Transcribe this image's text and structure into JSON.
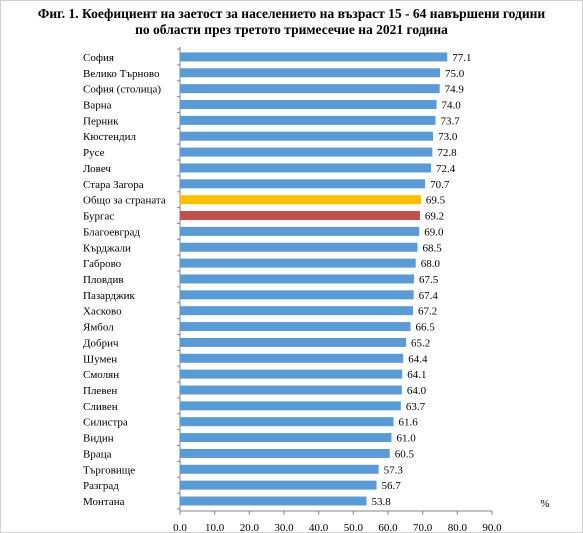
{
  "chart_data": {
    "type": "bar",
    "orientation": "horizontal",
    "title": "Фиг. 1. Коефициент на заетост за населението на възраст 15 - 64 навършени години по области през третото тримесечие на 2021 година",
    "title_lines": [
      "Фиг. 1. Коефициент на заетост за населението на възраст 15 - 64 навършени години",
      "по области през третото тримесечие на 2021 година"
    ],
    "unit_label": "%",
    "categories": [
      "София",
      "Велико Търново",
      "София (столица)",
      "Варна",
      "Перник",
      "Кюстендил",
      "Русе",
      "Ловеч",
      "Стара Загора",
      "Общо за страната",
      "Бургас",
      "Благоевград",
      "Кърджали",
      "Габрово",
      "Пловдив",
      "Пазарджик",
      "Хасково",
      "Ямбол",
      "Добрич",
      "Шумен",
      "Смолян",
      "Плевен",
      "Сливен",
      "Силистра",
      "Видин",
      "Враца",
      "Търговище",
      "Разград",
      "Монтана"
    ],
    "values": [
      77.1,
      75.0,
      74.9,
      74.0,
      73.7,
      73.0,
      72.8,
      72.4,
      70.7,
      69.5,
      69.2,
      69.0,
      68.5,
      68.0,
      67.5,
      67.4,
      67.2,
      66.5,
      65.2,
      64.4,
      64.1,
      64.0,
      63.7,
      61.6,
      61.0,
      60.5,
      57.3,
      56.7,
      53.8
    ],
    "value_labels": [
      "77.1",
      "75.0",
      "74.9",
      "74.0",
      "73.7",
      "73.0",
      "72.8",
      "72.4",
      "70.7",
      "69.5",
      "69.2",
      "69.0",
      "68.5",
      "68.0",
      "67.5",
      "67.4",
      "67.2",
      "66.5",
      "65.2",
      "64.4",
      "64.1",
      "64.0",
      "63.7",
      "61.6",
      "61.0",
      "60.5",
      "57.3",
      "56.7",
      "53.8"
    ],
    "xlim": [
      0,
      90
    ],
    "x_ticks": [
      "0.0",
      "10.0",
      "20.0",
      "30.0",
      "40.0",
      "50.0",
      "60.0",
      "70.0",
      "80.0",
      "90.0"
    ],
    "grid": false,
    "colors": {
      "default": "#5b9bd5",
      "highlight_total": "#ffc000",
      "highlight_region": "#c0504d"
    },
    "highlights": {
      "Общо за страната": "highlight_total",
      "Бургас": "highlight_region"
    }
  }
}
